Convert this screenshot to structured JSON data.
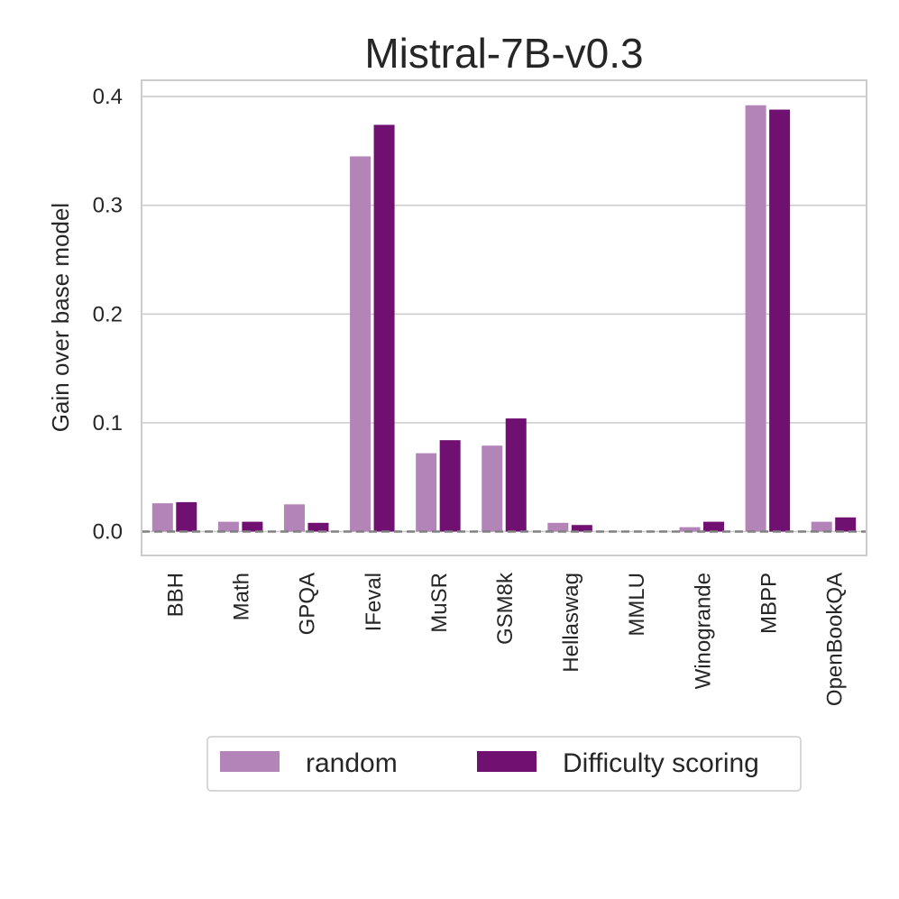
{
  "chart_data": {
    "type": "bar",
    "title": "Mistral-7B-v0.3",
    "xlabel": "",
    "ylabel": "Gain over base model",
    "categories": [
      "BBH",
      "Math",
      "GPQA",
      "IFeval",
      "MuSR",
      "GSM8k",
      "Hellaswag",
      "MMLU",
      "Winogrande",
      "MBPP",
      "OpenBookQA"
    ],
    "series": [
      {
        "name": "random",
        "color": "#b384b8",
        "values": [
          0.026,
          0.009,
          0.025,
          0.345,
          0.072,
          0.079,
          0.008,
          0.0,
          0.004,
          0.392,
          0.009
        ]
      },
      {
        "name": "Difficulty scoring",
        "color": "#701070",
        "values": [
          0.027,
          0.009,
          0.008,
          0.374,
          0.084,
          0.104,
          0.006,
          0.0,
          0.009,
          0.388,
          0.013
        ]
      }
    ],
    "ylim": [
      -0.022,
      0.415
    ],
    "yticks": [
      0.0,
      0.1,
      0.2,
      0.3,
      0.4
    ],
    "ytick_labels": [
      "0.0",
      "0.1",
      "0.2",
      "0.3",
      "0.4"
    ],
    "grid": "horizontal",
    "reference_line": {
      "y": 0,
      "style": "dashed"
    },
    "legend": {
      "placement": "bottom-center",
      "columns": 2
    }
  }
}
